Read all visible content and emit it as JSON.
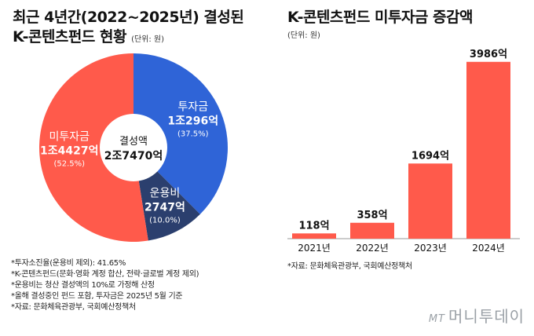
{
  "left_chart": {
    "title_line1": "최근 4년간(2022~2025년) 결성된",
    "title_line2": "K-콘텐츠펀드 현황",
    "unit": "(단위: 원)",
    "center_label": "결성액",
    "center_value": "2조7470억",
    "colors": {
      "invest": "#2f64d7",
      "unused": "#ff5a4b",
      "ops": "#2b3f6e"
    }
  },
  "right_chart": {
    "title": "K-콘텐츠펀드 미투자금 증감액",
    "unit": "(단위: 원)",
    "bar_color": "#ff5a4b",
    "source": "*자료: 문화체육관광부, 국회예산정책처"
  },
  "notes": [
    "*투자소진율(운용비 제외): 41.65%",
    "*K-콘텐츠펀드(문화·영화 계정 합산, 전략·글로벌 계정 제외)",
    "*운용비는 청산 결성액의 10%로 가정해 산정",
    "*올해 결성중인 펀드 포함, 투자금은 2025년 5월 기준",
    "*자료: 문화체육관광부, 국회예산정책처"
  ],
  "watermark": {
    "mark": "MT",
    "text": "머니투데이"
  },
  "chart_data": [
    {
      "type": "pie",
      "title": "최근 4년간(2022~2025년) 결성된 K-콘텐츠펀드 현황",
      "slices": [
        {
          "name": "투자금",
          "amount": "1조296억",
          "value": 37.5,
          "percent_label": "(37.5%)"
        },
        {
          "name": "운용비",
          "amount": "2747억",
          "value": 10.0,
          "percent_label": "(10.0%)"
        },
        {
          "name": "미투자금",
          "amount": "1조4427억",
          "value": 52.5,
          "percent_label": "(52.5%)"
        }
      ],
      "total": "2조7470억"
    },
    {
      "type": "bar",
      "title": "K-콘텐츠펀드 미투자금 증감액",
      "categories": [
        "2021년",
        "2022년",
        "2023년",
        "2024년"
      ],
      "values": [
        118,
        358,
        1694,
        3986
      ],
      "value_labels": [
        "118억",
        "358억",
        "1694억",
        "3986억"
      ],
      "ylim": [
        0,
        4000
      ]
    }
  ]
}
